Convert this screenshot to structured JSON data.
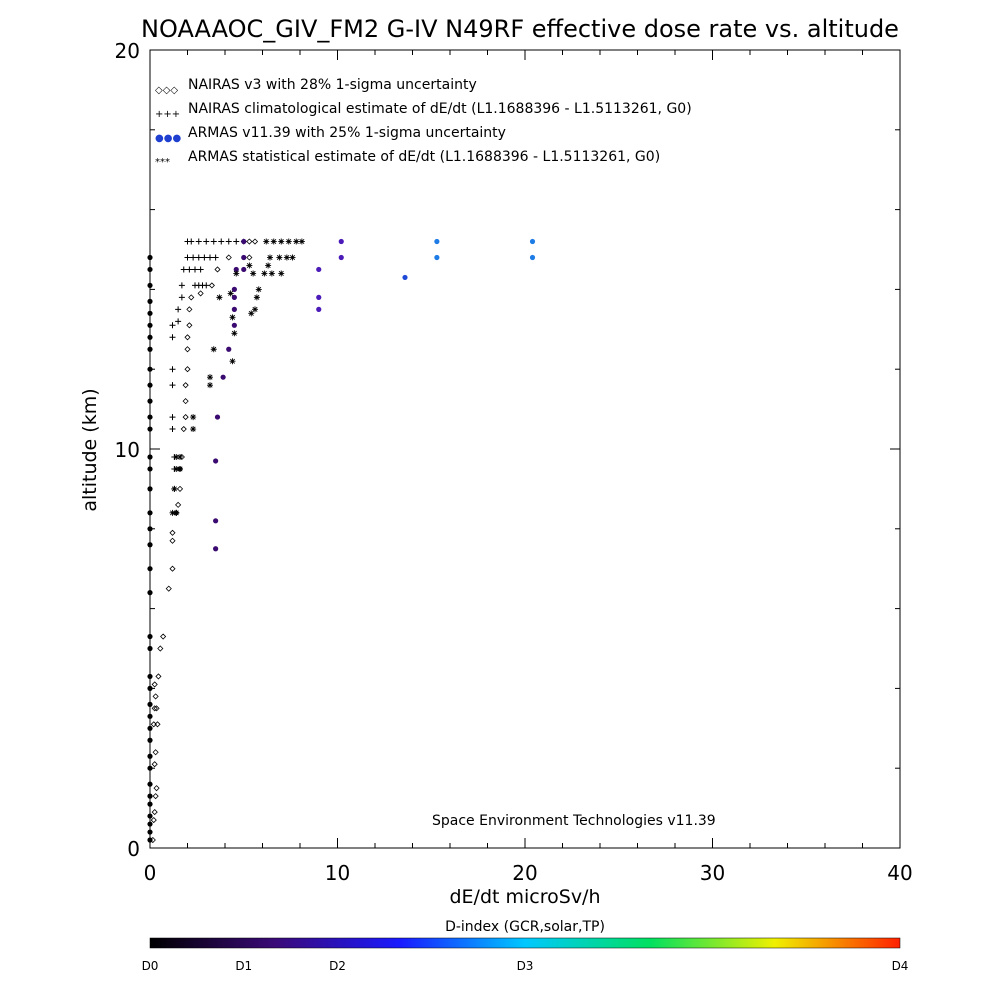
{
  "chart_data": {
    "type": "scatter",
    "title": "NOAAAOC_GIV_FM2 G-IV   N49RF  effective dose rate vs. altitude",
    "xlabel": "dE/dt microSv/h",
    "ylabel": "altitude (km)",
    "xlim": [
      0,
      40
    ],
    "ylim": [
      0,
      20
    ],
    "x_ticks": [
      {
        "value": 0,
        "label": "0"
      },
      {
        "value": 10,
        "label": "10"
      },
      {
        "value": 20,
        "label": "20"
      },
      {
        "value": 30,
        "label": "30"
      },
      {
        "value": 40,
        "label": "40"
      }
    ],
    "y_ticks": [
      {
        "value": 0,
        "label": "0"
      },
      {
        "value": 10,
        "label": "10"
      },
      {
        "value": 20,
        "label": "20"
      }
    ],
    "grid": false,
    "legend_position": "top-left",
    "legend": [
      {
        "symbol": "◇◇◇",
        "symbol_color": "#000000",
        "label": "NAIRAS v3 with 28% 1-sigma uncertainty"
      },
      {
        "symbol": "+++",
        "symbol_color": "#000000",
        "label": "NAIRAS climatological estimate of dE/dt (L1.1688396 - L1.5113261, G0)"
      },
      {
        "symbol": "●●●",
        "symbol_color": "#1f3fd0",
        "label": "ARMAS v11.39 with 25% 1-sigma uncertainty"
      },
      {
        "symbol": "***",
        "symbol_color": "#000000",
        "label": "ARMAS statistical estimate of dE/dt (L1.1688396 - L1.5113261, G0)"
      }
    ],
    "annotation": "Space Environment Technologies v11.39",
    "series": [
      {
        "name": "NAIRAS v3 with 28% 1-sigma uncertainty",
        "marker": "diamond",
        "points": [
          [
            0.15,
            0.2
          ],
          [
            0.2,
            0.7
          ],
          [
            0.25,
            0.9
          ],
          [
            0.3,
            1.3
          ],
          [
            0.35,
            1.5
          ],
          [
            0.25,
            2.1
          ],
          [
            0.3,
            2.4
          ],
          [
            0.2,
            3.1
          ],
          [
            0.4,
            3.1
          ],
          [
            0.25,
            3.5
          ],
          [
            0.35,
            3.5
          ],
          [
            0.3,
            3.8
          ],
          [
            0.25,
            4.1
          ],
          [
            0.45,
            4.3
          ],
          [
            0.55,
            5.0
          ],
          [
            0.7,
            5.3
          ],
          [
            1.0,
            6.5
          ],
          [
            1.2,
            7.0
          ],
          [
            1.2,
            7.7
          ],
          [
            1.2,
            7.9
          ],
          [
            1.4,
            8.4
          ],
          [
            1.5,
            8.6
          ],
          [
            1.6,
            9.0
          ],
          [
            1.6,
            9.5
          ],
          [
            1.7,
            9.8
          ],
          [
            1.8,
            10.5
          ],
          [
            1.9,
            10.8
          ],
          [
            1.9,
            11.2
          ],
          [
            1.9,
            11.6
          ],
          [
            2.0,
            12.0
          ],
          [
            2.0,
            12.5
          ],
          [
            2.0,
            12.8
          ],
          [
            2.1,
            13.1
          ],
          [
            2.1,
            13.5
          ],
          [
            2.2,
            13.8
          ],
          [
            2.7,
            13.9
          ],
          [
            3.3,
            14.1
          ],
          [
            3.6,
            14.5
          ],
          [
            4.2,
            14.8
          ],
          [
            5.3,
            14.8
          ],
          [
            5.0,
            15.2
          ],
          [
            5.3,
            15.2
          ],
          [
            5.6,
            15.2
          ]
        ]
      },
      {
        "name": "NAIRAS climatological estimate of dE/dt (L1.1688396 - L1.5113261, G0)",
        "marker": "plus",
        "points": [
          [
            1.2,
            10.5
          ],
          [
            1.2,
            10.8
          ],
          [
            1.2,
            11.6
          ],
          [
            1.2,
            12.0
          ],
          [
            1.2,
            12.8
          ],
          [
            1.2,
            13.1
          ],
          [
            1.5,
            13.2
          ],
          [
            1.5,
            13.5
          ],
          [
            1.7,
            13.8
          ],
          [
            1.7,
            14.1
          ],
          [
            1.8,
            14.5
          ],
          [
            2.1,
            14.5
          ],
          [
            2.4,
            14.5
          ],
          [
            2.7,
            14.5
          ],
          [
            2.0,
            14.8
          ],
          [
            2.3,
            14.8
          ],
          [
            2.6,
            14.8
          ],
          [
            2.9,
            14.8
          ],
          [
            3.2,
            14.8
          ],
          [
            3.5,
            14.8
          ],
          [
            2.2,
            15.2
          ],
          [
            2.6,
            15.2
          ],
          [
            3.0,
            15.2
          ],
          [
            3.4,
            15.2
          ],
          [
            3.8,
            15.2
          ],
          [
            4.2,
            15.2
          ],
          [
            4.6,
            15.2
          ],
          [
            2.0,
            15.2
          ],
          [
            2.4,
            14.1
          ],
          [
            2.6,
            14.1
          ],
          [
            2.8,
            14.1
          ],
          [
            3.0,
            14.1
          ],
          [
            1.4,
            8.4
          ],
          [
            1.3,
            9.0
          ],
          [
            1.3,
            9.5
          ],
          [
            1.3,
            9.8
          ]
        ]
      },
      {
        "name": "ARMAS v11.39 with 25% 1-sigma uncertainty",
        "marker": "dot",
        "points": [
          [
            0,
            0.2
          ],
          [
            0,
            0.4
          ],
          [
            0,
            0.6
          ],
          [
            0,
            0.8
          ],
          [
            0,
            1.1
          ],
          [
            0,
            1.3
          ],
          [
            0,
            1.6
          ],
          [
            0,
            2.0
          ],
          [
            0,
            2.3
          ],
          [
            0,
            2.7
          ],
          [
            0,
            3.0
          ],
          [
            0,
            3.3
          ],
          [
            0,
            3.6
          ],
          [
            0,
            4.0
          ],
          [
            0,
            4.3
          ],
          [
            0,
            5.0
          ],
          [
            0,
            5.3
          ],
          [
            0,
            6.4
          ],
          [
            0,
            7.0
          ],
          [
            0,
            7.6
          ],
          [
            0,
            8.0
          ],
          [
            0,
            8.4
          ],
          [
            0,
            9.0
          ],
          [
            0,
            9.5
          ],
          [
            0,
            9.8
          ],
          [
            0,
            10.5
          ],
          [
            0,
            10.8
          ],
          [
            0,
            11.2
          ],
          [
            0,
            11.6
          ],
          [
            0,
            12.0
          ],
          [
            0,
            12.5
          ],
          [
            0,
            12.8
          ],
          [
            0,
            13.1
          ],
          [
            0,
            13.4
          ],
          [
            0,
            13.7
          ],
          [
            0,
            14.1
          ],
          [
            0,
            14.5
          ],
          [
            0,
            14.8
          ],
          [
            3.5,
            7.5
          ],
          [
            3.5,
            8.2
          ],
          [
            3.5,
            9.7
          ],
          [
            3.6,
            10.8
          ],
          [
            3.9,
            11.8
          ],
          [
            4.2,
            12.5
          ],
          [
            4.5,
            13.1
          ],
          [
            4.5,
            13.5
          ],
          [
            4.5,
            13.8
          ],
          [
            4.5,
            14.0
          ],
          [
            4.6,
            14.5
          ],
          [
            5.0,
            14.5
          ],
          [
            5.0,
            14.8
          ],
          [
            5.0,
            15.2
          ],
          [
            9.0,
            13.5
          ],
          [
            9.0,
            13.8
          ],
          [
            9.0,
            14.5
          ],
          [
            10.2,
            14.8
          ],
          [
            10.2,
            15.2
          ],
          [
            13.6,
            14.3
          ],
          [
            15.3,
            14.8
          ],
          [
            15.3,
            15.2
          ],
          [
            20.4,
            14.8
          ],
          [
            20.4,
            15.2
          ]
        ]
      },
      {
        "name": "ARMAS statistical estimate of dE/dt (L1.1688396 - L1.5113261, G0)",
        "marker": "asterisk",
        "points": [
          [
            1.2,
            8.4
          ],
          [
            1.4,
            8.4
          ],
          [
            1.3,
            9.0
          ],
          [
            1.4,
            9.5
          ],
          [
            1.6,
            9.5
          ],
          [
            1.4,
            9.8
          ],
          [
            1.6,
            9.8
          ],
          [
            2.3,
            10.5
          ],
          [
            2.3,
            10.8
          ],
          [
            3.2,
            11.6
          ],
          [
            3.2,
            11.8
          ],
          [
            3.4,
            12.5
          ],
          [
            4.4,
            12.2
          ],
          [
            4.5,
            12.9
          ],
          [
            4.4,
            13.3
          ],
          [
            3.7,
            13.8
          ],
          [
            5.4,
            13.4
          ],
          [
            5.6,
            13.5
          ],
          [
            4.3,
            13.9
          ],
          [
            5.7,
            13.8
          ],
          [
            5.8,
            14.0
          ],
          [
            4.6,
            14.4
          ],
          [
            5.5,
            14.4
          ],
          [
            6.1,
            14.4
          ],
          [
            6.5,
            14.4
          ],
          [
            7.0,
            14.4
          ],
          [
            6.4,
            14.8
          ],
          [
            6.9,
            14.8
          ],
          [
            7.3,
            14.8
          ],
          [
            7.6,
            14.8
          ],
          [
            6.2,
            15.2
          ],
          [
            6.6,
            15.2
          ],
          [
            7.0,
            15.2
          ],
          [
            7.4,
            15.2
          ],
          [
            7.8,
            15.2
          ],
          [
            8.1,
            15.2
          ],
          [
            6.3,
            14.6
          ],
          [
            5.3,
            14.6
          ]
        ]
      }
    ],
    "colorbar": {
      "title": "D-index (GCR,solar,TP)",
      "stops": [
        "#000000",
        "#3a0a78",
        "#1a1aff",
        "#00c8ff",
        "#00e060",
        "#f0f000",
        "#ff2000"
      ],
      "labels": [
        {
          "label": "D0",
          "pos": 0.0
        },
        {
          "label": "D1",
          "pos": 0.125
        },
        {
          "label": "D2",
          "pos": 0.25
        },
        {
          "label": "D3",
          "pos": 0.5
        },
        {
          "label": "D4",
          "pos": 1.0
        }
      ]
    }
  }
}
